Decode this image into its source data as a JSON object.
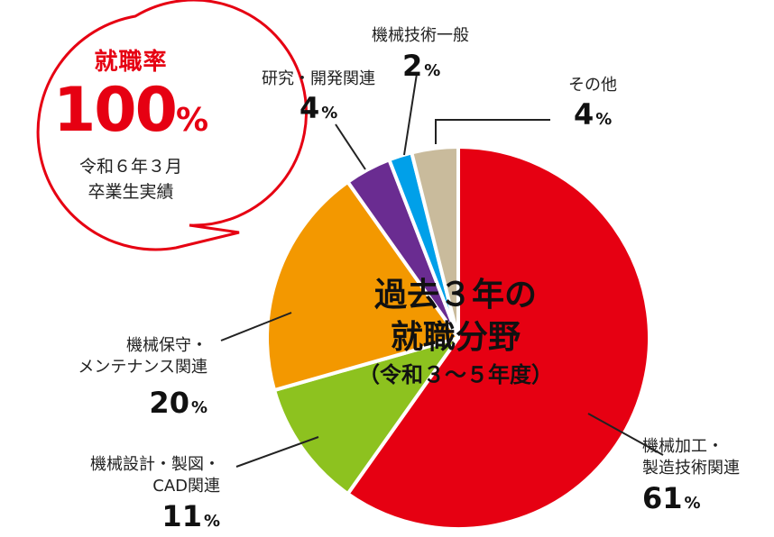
{
  "callout": {
    "title": "就職率",
    "value": "100",
    "unit": "%",
    "line1": "令和６年３月",
    "line2": "卒業生実績"
  },
  "center": {
    "line1": "過去３年の",
    "line2": "就職分野",
    "line3": "（令和３～５年度）"
  },
  "labels": {
    "kakou_1": "機械加工・",
    "kakou_2": "製造技術関連",
    "cad_1": "機械設計・製図・",
    "cad_2": "CAD関連",
    "hoshu_1": "機械保守・",
    "hoshu_2": "メンテナンス関連",
    "kenkyu": "研究・開発関連",
    "ippan": "機械技術一般",
    "sonota": "その他"
  },
  "chart_data": {
    "type": "pie",
    "unit": "%",
    "slices": [
      {
        "label": "機械加工・製造技術関連",
        "value": 61,
        "color": "#e60012"
      },
      {
        "label": "機械設計・製図・CAD関連",
        "value": 11,
        "color": "#8dc21f"
      },
      {
        "label": "機械保守・メンテナンス関連",
        "value": 20,
        "color": "#f39800"
      },
      {
        "label": "研究・開発関連",
        "value": 4,
        "color": "#6a2c91"
      },
      {
        "label": "機械技術一般",
        "value": 2,
        "color": "#00a0e9"
      },
      {
        "label": "その他",
        "value": 4,
        "color": "#c9bb9c"
      }
    ],
    "start": "12 o'clock",
    "direction": "clockwise"
  }
}
